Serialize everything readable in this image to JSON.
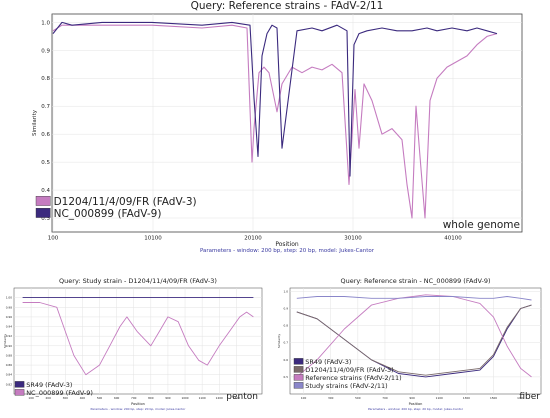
{
  "chart_data": [
    {
      "type": "line",
      "title": "Query: Reference strains - FAdV-2/11",
      "xlabel": "Position",
      "ylabel": "Similarity",
      "xlim": [
        0,
        47000
      ],
      "ylim": [
        0.25,
        1.03
      ],
      "xticks": [
        100,
        10100,
        20100,
        30100,
        40100
      ],
      "xtick_labels": [
        "100",
        "10100",
        "20100",
        "30100",
        "40100"
      ],
      "yticks": [
        0.3,
        0.4,
        0.5,
        0.6,
        0.7,
        0.8,
        0.9,
        1.0
      ],
      "ytick_labels": [
        "0.3",
        "0.4",
        "0.5",
        "0.6",
        "0.7",
        "0.8",
        "0.9",
        "1.0"
      ],
      "grid": true,
      "legend": "bottom-left",
      "annotation": "whole genome",
      "footer": "Parameters - window: 200 bp, step: 20 bp, model: Jukes-Cantor",
      "series": [
        {
          "name": "D1204/11/4/09/FR (FAdV-3)",
          "color": "#c57cc0",
          "x": [
            100,
            1000,
            2000,
            5000,
            10000,
            15000,
            18000,
            19500,
            20000,
            20200,
            20700,
            21200,
            21700,
            22500,
            23000,
            24000,
            25000,
            26000,
            27000,
            28000,
            29000,
            29700,
            30300,
            30700,
            31200,
            32000,
            33000,
            34000,
            35000,
            35500,
            36000,
            36400,
            36800,
            37300,
            37800,
            38500,
            39500,
            40500,
            41500,
            42500,
            43500,
            44500
          ],
          "y": [
            0.97,
            0.99,
            0.99,
            0.99,
            0.99,
            0.98,
            0.99,
            0.98,
            0.5,
            0.62,
            0.82,
            0.84,
            0.82,
            0.68,
            0.78,
            0.84,
            0.82,
            0.84,
            0.83,
            0.85,
            0.82,
            0.42,
            0.76,
            0.55,
            0.78,
            0.72,
            0.6,
            0.62,
            0.58,
            0.42,
            0.3,
            0.7,
            0.52,
            0.3,
            0.72,
            0.8,
            0.84,
            0.86,
            0.88,
            0.92,
            0.95,
            0.96
          ]
        },
        {
          "name": "NC_000899 (FAdV-9)",
          "color": "#3b2a7e",
          "x": [
            100,
            1000,
            2000,
            5000,
            10000,
            15000,
            18000,
            19800,
            20200,
            20600,
            21000,
            21500,
            22000,
            22500,
            23000,
            24500,
            26000,
            27000,
            28500,
            29500,
            29800,
            30200,
            30700,
            31500,
            33000,
            34500,
            36000,
            37500,
            38500,
            40000,
            41500,
            42500,
            43500,
            44500
          ],
          "y": [
            0.96,
            1.0,
            0.99,
            1.0,
            1.0,
            0.99,
            1.0,
            0.99,
            0.73,
            0.52,
            0.88,
            0.96,
            0.99,
            0.98,
            0.55,
            0.97,
            0.98,
            0.97,
            0.99,
            0.97,
            0.45,
            0.92,
            0.96,
            0.97,
            0.98,
            0.97,
            0.97,
            0.98,
            0.97,
            0.98,
            0.97,
            0.98,
            0.97,
            0.96
          ]
        }
      ]
    },
    {
      "type": "line",
      "title": "Query: Study strain - D1204/11/4/09/FR (FAdV-3)",
      "xlabel": "Position",
      "ylabel": "Similarity",
      "xlim": [
        0,
        1450
      ],
      "ylim": [
        0.8,
        1.02
      ],
      "xticks": [
        100,
        200,
        300,
        400,
        500,
        600,
        700,
        800,
        900,
        1000,
        1100,
        1200,
        1300
      ],
      "xtick_labels": [
        "100",
        "200",
        "300",
        "400",
        "500",
        "600",
        "700",
        "800",
        "900",
        "1000",
        "1100",
        "1200",
        "1300"
      ],
      "yticks": [
        0.82,
        0.84,
        0.86,
        0.88,
        0.9,
        0.92,
        0.94,
        0.96,
        0.98,
        1.0
      ],
      "ytick_labels": [
        "0.82",
        "0.84",
        "0.86",
        "0.88",
        "0.90",
        "0.92",
        "0.94",
        "0.96",
        "0.98",
        "1.00"
      ],
      "grid": true,
      "legend": "bottom-left",
      "annotation": "penton",
      "footer": "Parameters - window: 200 bp, step: 20 bp, model: Jukes-Cantor",
      "series": [
        {
          "name": "SR49 (FAdV-3)",
          "color": "#3b2a7e",
          "x": [
            50,
            300,
            600,
            900,
            1100,
            1250,
            1350,
            1400
          ],
          "y": [
            1.0,
            1.0,
            1.0,
            1.0,
            1.0,
            1.0,
            1.0,
            1.0
          ]
        },
        {
          "name": "NC_000899 (FAdV-9)",
          "color": "#c57cc0",
          "x": [
            50,
            150,
            250,
            300,
            350,
            420,
            500,
            560,
            620,
            660,
            720,
            800,
            850,
            900,
            960,
            1020,
            1080,
            1130,
            1200,
            1260,
            1320,
            1360,
            1400
          ],
          "y": [
            0.99,
            0.99,
            0.98,
            0.93,
            0.88,
            0.84,
            0.86,
            0.9,
            0.94,
            0.96,
            0.93,
            0.9,
            0.93,
            0.96,
            0.95,
            0.9,
            0.87,
            0.86,
            0.9,
            0.93,
            0.96,
            0.97,
            0.96
          ]
        }
      ]
    },
    {
      "type": "line",
      "title": "Query: Reference strain - NC_000899 (FAdV-9)",
      "xlabel": "Position",
      "ylabel": "Similarity",
      "xlim": [
        0,
        1850
      ],
      "ylim": [
        0.4,
        1.02
      ],
      "xticks": [
        100,
        300,
        500,
        700,
        900,
        1100,
        1300,
        1500,
        1700
      ],
      "xtick_labels": [
        "100",
        "300",
        "500",
        "700",
        "900",
        "1100",
        "1300",
        "1500",
        "1700"
      ],
      "yticks": [
        0.5,
        0.6,
        0.7,
        0.8,
        0.9,
        1.0
      ],
      "ytick_labels": [
        "0.5",
        "0.6",
        "0.7",
        "0.8",
        "0.9",
        "1.0"
      ],
      "grid": true,
      "legend": "bottom-left",
      "annotation": "fiber",
      "footer": "Parameters - window: 200 bp, step: 20 bp, model: Jukes-Cantor",
      "series": [
        {
          "name": "SR49 (FAdV-3)",
          "color": "#3b2a7e",
          "x": [
            50,
            200,
            400,
            600,
            800,
            1000,
            1200,
            1400,
            1500,
            1600,
            1700,
            1780
          ],
          "y": [
            0.88,
            0.84,
            0.72,
            0.6,
            0.52,
            0.5,
            0.52,
            0.54,
            0.62,
            0.78,
            0.9,
            0.92
          ]
        },
        {
          "name": "D1204/11/4/09/FR (FAdV-3)",
          "color": "#7a6a6a",
          "x": [
            50,
            200,
            400,
            600,
            800,
            1000,
            1200,
            1400,
            1500,
            1600,
            1700,
            1780
          ],
          "y": [
            0.88,
            0.84,
            0.72,
            0.6,
            0.53,
            0.51,
            0.53,
            0.55,
            0.63,
            0.79,
            0.9,
            0.92
          ]
        },
        {
          "name": "Reference strains (FAdV-2/11)",
          "color": "#c57cc0",
          "x": [
            50,
            200,
            400,
            600,
            800,
            1000,
            1200,
            1400,
            1500,
            1600,
            1700,
            1780
          ],
          "y": [
            0.5,
            0.6,
            0.78,
            0.92,
            0.96,
            0.98,
            0.97,
            0.93,
            0.85,
            0.68,
            0.55,
            0.5
          ]
        },
        {
          "name": "Study strains (FAdV-2/11)",
          "color": "#8a86c9",
          "x": [
            50,
            200,
            400,
            600,
            800,
            1000,
            1200,
            1400,
            1500,
            1600,
            1700,
            1780
          ],
          "y": [
            0.96,
            0.97,
            0.97,
            0.96,
            0.96,
            0.97,
            0.97,
            0.96,
            0.96,
            0.97,
            0.96,
            0.95
          ]
        }
      ]
    }
  ]
}
